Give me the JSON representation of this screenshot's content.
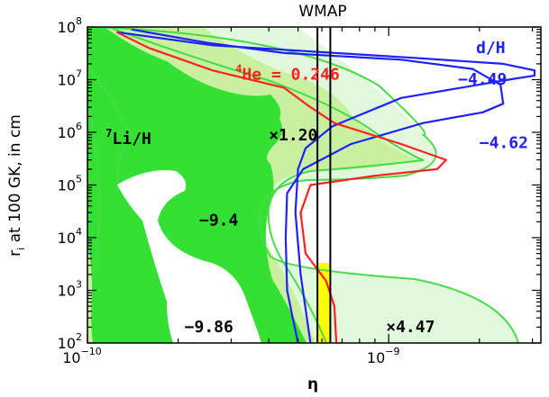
{
  "chart_data": {
    "type": "area",
    "title": "WMAP",
    "xlabel": "η",
    "ylabel_parts": [
      "r",
      "i",
      " at 100 GK, in cm"
    ],
    "x_scale": "log",
    "y_scale": "log",
    "xlim": [
      1e-10,
      3.2e-09
    ],
    "ylim": [
      100,
      100000000.0
    ],
    "x_ticks": [
      {
        "value": 1e-10,
        "base": "10",
        "exp": "−10"
      },
      {
        "value": 1e-09,
        "base": "10",
        "exp": "−9"
      }
    ],
    "y_ticks": [
      {
        "value": 100,
        "base": "10",
        "exp": "2"
      },
      {
        "value": 1000,
        "base": "10",
        "exp": "3"
      },
      {
        "value": 10000,
        "base": "10",
        "exp": "4"
      },
      {
        "value": 100000,
        "base": "10",
        "exp": "5"
      },
      {
        "value": 1000000,
        "base": "10",
        "exp": "6"
      },
      {
        "value": 10000000,
        "base": "10",
        "exp": "7"
      },
      {
        "value": 100000000,
        "base": "10",
        "exp": "8"
      }
    ],
    "wmap_band": [
      5.8e-10,
      6.4e-10
    ],
    "colors": {
      "li_fill": "#33e033",
      "li_band": "#c8f0a0",
      "li_light": "#e2f8dc",
      "li_outline": "#44dd44",
      "he": "#ff2020",
      "dh": "#2020ff",
      "wmap_fill": "#ffff00"
    },
    "annotations": [
      {
        "text": "d/H",
        "color": "#2020ff",
        "x": 1.95e-09,
        "y": 32000000.0
      },
      {
        "text": "−4.49",
        "color": "#2020ff",
        "x": 1.7e-09,
        "y": 8000000.0
      },
      {
        "text": "−4.62",
        "color": "#2020ff",
        "x": 2e-09,
        "y": 500000.0
      },
      {
        "text": "×1.20",
        "color": "#000000",
        "x": 4e-10,
        "y": 700000.0
      },
      {
        "text": "−9.4",
        "color": "#000000",
        "x": 2.35e-10,
        "y": 17000.0
      },
      {
        "text": "−9.86",
        "color": "#000000",
        "x": 2.1e-10,
        "y": 160
      },
      {
        "text": "×4.47",
        "color": "#000000",
        "x": 9.8e-10,
        "y": 160
      }
    ],
    "annotation_rich": [
      {
        "sup": "4",
        "text": "He = 0.246",
        "color": "#ff2020",
        "x": 3.1e-10,
        "y": 10000000.0
      },
      {
        "sup": "7",
        "text": "Li/H",
        "color": "#000000",
        "x": 1.15e-10,
        "y": 600000.0
      }
    ],
    "series": [
      {
        "name": "d/H −4.49",
        "color": "#2020ff",
        "x": [
          1.25e-10,
          2.6e-10,
          1.2e-09,
          2.4e-09,
          3.05e-09,
          3.05e-09,
          2.5e-09,
          1.1e-09,
          6.5e-10,
          5.3e-10,
          5e-10,
          4.9e-10,
          5.1e-10,
          5.5e-10
        ],
        "y": [
          80000000.0,
          45000000.0,
          26000000.0,
          20000000.0,
          15000000.0,
          12000000.0,
          10000000.0,
          4500000.0,
          1300000.0,
          500000.0,
          200000.0,
          30000.0,
          2000.0,
          100
        ]
      },
      {
        "name": "d/H −4.62",
        "color": "#2020ff",
        "x": [
          1.4e-10,
          2.5e-10,
          4.5e-10,
          1.1e-09,
          1.9e-09,
          2.35e-09,
          2.4e-09,
          2.05e-09,
          1.3e-09,
          7.5e-10,
          5.2e-10,
          4.6e-10,
          4.55e-10,
          4.6e-10,
          4.8e-10,
          5e-10
        ],
        "y": [
          90000000.0,
          50000000.0,
          32000000.0,
          24000000.0,
          16000000.0,
          8000000.0,
          3500000.0,
          2400000.0,
          1500000.0,
          600000.0,
          200000.0,
          70000.0,
          10000.0,
          1000.0,
          300,
          100
        ]
      },
      {
        "name": "4He = 0.246",
        "color": "#ff2020",
        "x": [
          1.25e-10,
          1.6e-10,
          2.6e-10,
          4.5e-10,
          5.5e-10,
          6.6e-10,
          1.1e-09,
          1.55e-09,
          1.45e-09,
          9e-10,
          5.5e-10,
          5.1e-10,
          5.3e-10,
          6.2e-10,
          6.6e-10,
          6.7e-10
        ],
        "y": [
          80000000.0,
          40000000.0,
          15000000.0,
          7000000.0,
          3000000.0,
          1500000.0,
          600000.0,
          300000.0,
          200000.0,
          150000.0,
          100000.0,
          30000.0,
          5000.0,
          1500.0,
          500,
          100
        ]
      }
    ]
  }
}
